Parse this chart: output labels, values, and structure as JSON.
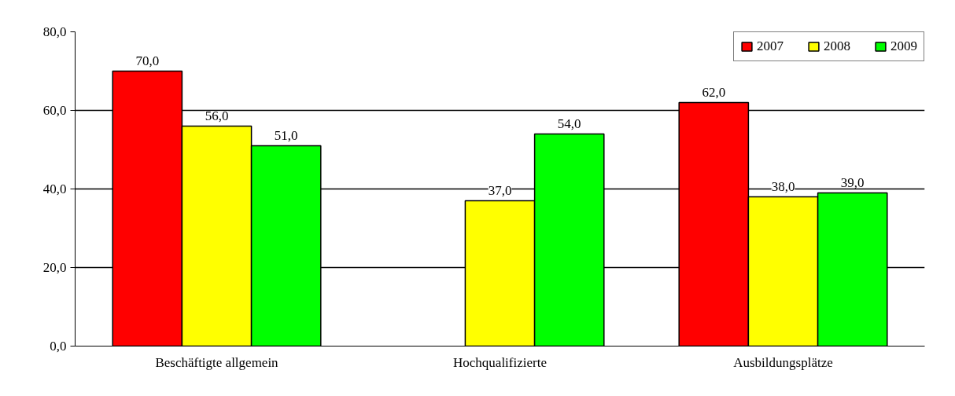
{
  "chart_data": {
    "type": "bar",
    "categories": [
      "Beschäftigte allgemein",
      "Hochqualifizierte",
      "Ausbildungsplätze"
    ],
    "series": [
      {
        "name": "2007",
        "color": "#ff0000",
        "values": [
          70,
          null,
          62
        ],
        "value_labels": [
          "70,0",
          null,
          "62,0"
        ]
      },
      {
        "name": "2008",
        "color": "#ffff00",
        "values": [
          56,
          37,
          38
        ],
        "value_labels": [
          "56,0",
          "37,0",
          "38,0"
        ]
      },
      {
        "name": "2009",
        "color": "#00ff00",
        "values": [
          51,
          54,
          39
        ],
        "value_labels": [
          "51,0",
          "54,0",
          "39,0"
        ]
      }
    ],
    "ylim": [
      0,
      80
    ],
    "yticks": [
      {
        "value": 0,
        "label": "0,0"
      },
      {
        "value": 20,
        "label": "20,0"
      },
      {
        "value": 40,
        "label": "40,0"
      },
      {
        "value": 60,
        "label": "60,0"
      },
      {
        "value": 80,
        "label": "80,0"
      }
    ],
    "grid": "y",
    "legend": "top right"
  }
}
